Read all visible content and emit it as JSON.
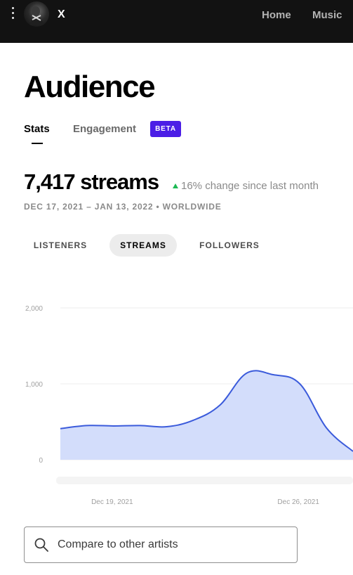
{
  "header": {
    "artist_name": "X",
    "nav": {
      "home": "Home",
      "music": "Music"
    }
  },
  "page": {
    "title": "Audience",
    "tabs": {
      "stats": "Stats",
      "engagement": "Engagement"
    },
    "beta_badge": "BETA"
  },
  "stats": {
    "headline": "7,417 streams",
    "change": "16% change since last month",
    "change_direction": "up",
    "change_color": "#1db954",
    "date_range": "DEC 17, 2021 – JAN 13, 2022 • WORLDWIDE"
  },
  "metrics": {
    "listeners": "LISTENERS",
    "streams": "STREAMS",
    "followers": "FOLLOWERS",
    "selected": "STREAMS"
  },
  "search": {
    "placeholder": "Compare to other artists"
  },
  "colors": {
    "accent": "#4b1ee6",
    "line": "#3b5bdb",
    "fill": "#d3ddfb"
  },
  "chart_data": {
    "type": "area",
    "title": "",
    "xlabel": "",
    "ylabel": "",
    "ylim": [
      0,
      2000
    ],
    "yticks": [
      0,
      1000,
      2000
    ],
    "ytick_labels": [
      "0",
      "1,000",
      "2,000"
    ],
    "xtick_labels": [
      {
        "label": "Dec 19, 2021",
        "x": 2
      },
      {
        "label": "Dec 26, 2021",
        "x": 9
      }
    ],
    "grid": true,
    "x": [
      0,
      1,
      2,
      3,
      4,
      5,
      6,
      7,
      8,
      9,
      10,
      11
    ],
    "series": [
      {
        "values": [
          410,
          450,
          445,
          450,
          435,
          520,
          720,
          1140,
          1120,
          1000,
          420,
          110
        ]
      }
    ]
  }
}
